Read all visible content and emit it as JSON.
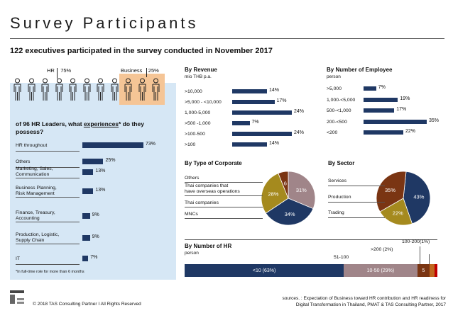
{
  "header": {
    "title": "Survey Participants",
    "subtitle": "122 executives participated in the survey conducted in November 2017"
  },
  "participants": {
    "hr_label": "HR",
    "hr_pct": "75%",
    "business_label": "Business",
    "business_pct": "25%"
  },
  "colors": {
    "navy": "#1f3864",
    "taupe": "#a08589",
    "olive": "#a58a1e",
    "brown": "#7a3513",
    "orange": "#c0671e",
    "red": "#c00000",
    "panel_blue": "#d6e7f5",
    "business_orange": "#f5c596"
  },
  "footer": {
    "copyright": "© 2018 TAS Consulting Partner  I  All Rights Reserved",
    "source_line1": "sources. : Expectation of Business toward HR contribution and HR readiness for",
    "source_line2": "Digital Transformation in Thailand, PMAT & TAS Consulting Partner, 2017"
  },
  "chart_data": [
    {
      "id": "hr_experiences",
      "type": "bar",
      "title": "of 96 HR Leaders, what experiences* do they possess?",
      "title_parts": [
        "of 96 HR Leaders, what ",
        "experiences",
        "* do they possess?"
      ],
      "categories": [
        "HR throughout",
        "Others",
        "Marketing, Sales, Communication",
        "Business Planning, Risk Management",
        "Finance, Treasury, Accounting",
        "Production, Logistic, Supply Chain",
        "IT"
      ],
      "category_lines": [
        [
          "HR throughout"
        ],
        [
          "Others"
        ],
        [
          "Marketing, Sales,",
          "Communication"
        ],
        [
          "Business Planning,",
          "Risk Management"
        ],
        [
          "Finance, Treasury,",
          "Accounting"
        ],
        [
          "Production, Logistic,",
          "Supply Chain"
        ],
        [
          "IT"
        ]
      ],
      "values": [
        73,
        25,
        13,
        13,
        9,
        9,
        7
      ],
      "value_labels": [
        "73%",
        "25%",
        "13%",
        "13%",
        "9%",
        "9%",
        "7%"
      ],
      "footnote": "*In full-time role for more than 6 months"
    },
    {
      "id": "by_revenue",
      "type": "bar",
      "title": "By Revenue",
      "unit": "mio THB p.a.",
      "categories": [
        ">10,000",
        ">5,000 - <10,000",
        "1,000-5,000",
        ">500 -1,000",
        ">100-500",
        ">100"
      ],
      "values": [
        14,
        17,
        24,
        7,
        24,
        14
      ],
      "value_labels": [
        "14%",
        "17%",
        "24%",
        "7%",
        "24%",
        "14%"
      ]
    },
    {
      "id": "by_employee",
      "type": "bar",
      "title": "By Number of Employee",
      "unit": "person",
      "categories": [
        ">5,000",
        "1,000-<5,000",
        "500-<1,000",
        "200-<500",
        "<200"
      ],
      "values": [
        7,
        19,
        17,
        35,
        22
      ],
      "value_labels": [
        "7%",
        "19%",
        "17%",
        "35%",
        "22%"
      ]
    },
    {
      "id": "by_type_of_corporate",
      "type": "pie",
      "title": "By Type of Corporate",
      "labels": [
        "Thai companies that have overseas operations",
        "MNCs",
        "Thai companies",
        "Others"
      ],
      "legend_lines": [
        [
          "Others"
        ],
        [
          "Thai companies that",
          "have overseas operations"
        ],
        [
          "Thai companies"
        ],
        [
          "MNCs"
        ]
      ],
      "values": [
        31,
        34,
        28,
        6
      ],
      "value_labels": [
        "31%",
        "34%",
        "28%",
        "6"
      ]
    },
    {
      "id": "by_sector",
      "type": "pie",
      "title": "By Sector",
      "labels": [
        "Services",
        "Production",
        "Trading"
      ],
      "values": [
        43,
        22,
        35
      ],
      "value_labels": [
        "43%",
        "22%",
        "35%"
      ]
    },
    {
      "id": "by_number_of_hr",
      "type": "bar",
      "title": "By Number of HR",
      "unit": "person",
      "categories": [
        "<10",
        "10-50",
        "51-100",
        ">200",
        "100-200"
      ],
      "values": [
        63,
        29,
        5,
        2,
        1
      ],
      "segment_labels": [
        "<10 (63%)",
        "10-50  (29%)",
        "5",
        "",
        ""
      ],
      "callouts": [
        "51-100",
        ">200 (2%)",
        "100-200(1%)"
      ]
    }
  ]
}
